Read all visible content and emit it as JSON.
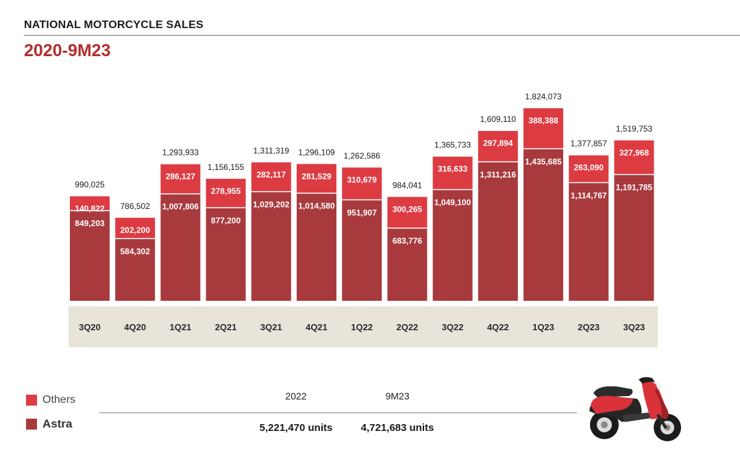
{
  "header": {
    "title": "NATIONAL MOTORCYCLE SALES",
    "subtitle": "2020-9M23"
  },
  "chart_data": {
    "type": "bar",
    "stacked": true,
    "categories": [
      "3Q20",
      "4Q20",
      "1Q21",
      "2Q21",
      "3Q21",
      "4Q21",
      "1Q22",
      "2Q22",
      "3Q22",
      "4Q22",
      "1Q23",
      "2Q23",
      "3Q23"
    ],
    "series": [
      {
        "name": "Astra",
        "color": "#a83a3e",
        "values": [
          849203,
          584302,
          1007806,
          877200,
          1029202,
          1014580,
          951907,
          683776,
          1049100,
          1311216,
          1435685,
          1114767,
          1191785
        ],
        "labels": [
          "849,203",
          "584,302",
          "1,007,806",
          "877,200",
          "1,029,202",
          "1,014,580",
          "951,907",
          "683,776",
          "1,049,100",
          "1,311,216",
          "1,435,685",
          "1,114,767",
          "1,191,785"
        ]
      },
      {
        "name": "Others",
        "color": "#dd3b42",
        "values": [
          140822,
          202200,
          286127,
          278955,
          282117,
          281529,
          310679,
          300265,
          316633,
          297894,
          388388,
          263090,
          327968
        ],
        "labels": [
          "140,822",
          "202,200",
          "286,127",
          "278,955",
          "282,117",
          "281,529",
          "310,679",
          "300,265",
          "316,633",
          "297,894",
          "388,388",
          "263,090",
          "327,968"
        ]
      }
    ],
    "totals": [
      990025,
      786502,
      1293933,
      1156155,
      1311319,
      1296109,
      1262586,
      984041,
      1365733,
      1609110,
      1824073,
      1377857,
      1519753
    ],
    "total_labels": [
      "990,025",
      "786,502",
      "1,293,933",
      "1,156,155",
      "1,311,319",
      "1,296,109",
      "1,262,586",
      "984,041",
      "1,365,733",
      "1,609,110",
      "1,824,073",
      "1,377,857",
      "1,519,753"
    ],
    "ylim": [
      0,
      1824073
    ],
    "grid": false,
    "legend_position": "bottom-left",
    "axis_band_color": "#e9e4d9"
  },
  "legend": {
    "others_label": "Others",
    "astra_label": "Astra"
  },
  "summary": {
    "col1_year": "2022",
    "col1_value": "5,221,470 units",
    "col2_year": "9M23",
    "col2_value": "4,721,683 units"
  },
  "illustration": {
    "icon": "scooter-icon"
  }
}
